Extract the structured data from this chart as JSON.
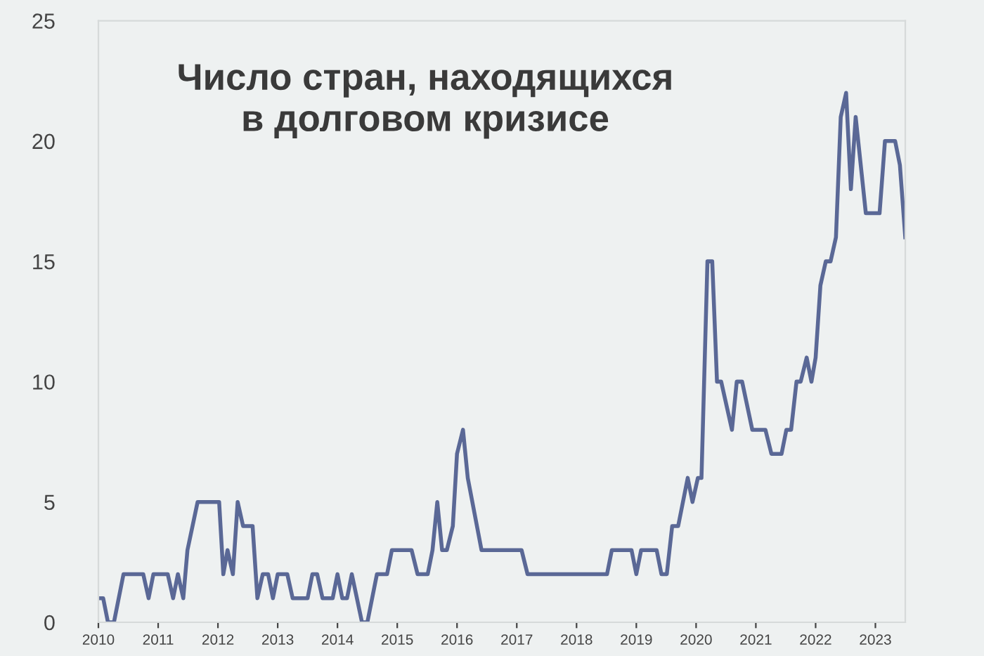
{
  "chart_data": {
    "type": "line",
    "title": "Число стран, находящихся\nв долговом кризисе",
    "series": [
      {
        "color": "#5a6896",
        "x": [
          2010.0,
          2010.08,
          2010.16,
          2010.26,
          2010.42,
          2010.75,
          2010.84,
          2010.92,
          2011.16,
          2011.25,
          2011.33,
          2011.42,
          2011.49,
          2011.66,
          2012.02,
          2012.09,
          2012.16,
          2012.25,
          2012.33,
          2012.42,
          2012.58,
          2012.66,
          2012.75,
          2012.84,
          2012.92,
          2013.0,
          2013.16,
          2013.25,
          2013.5,
          2013.58,
          2013.66,
          2013.75,
          2013.92,
          2014.0,
          2014.08,
          2014.16,
          2014.24,
          2014.41,
          2014.5,
          2014.66,
          2014.83,
          2014.91,
          2015.24,
          2015.34,
          2015.51,
          2015.59,
          2015.67,
          2015.75,
          2015.83,
          2015.93,
          2016.0,
          2016.1,
          2016.18,
          2016.41,
          2017.08,
          2017.18,
          2018.51,
          2018.59,
          2018.92,
          2019.0,
          2019.08,
          2019.34,
          2019.42,
          2019.51,
          2019.6,
          2019.7,
          2019.86,
          2019.94,
          2020.03,
          2020.09,
          2020.19,
          2020.27,
          2020.35,
          2020.42,
          2020.6,
          2020.68,
          2020.77,
          2020.94,
          2021.16,
          2021.26,
          2021.43,
          2021.51,
          2021.59,
          2021.68,
          2021.75,
          2021.85,
          2021.93,
          2022.0,
          2022.08,
          2022.17,
          2022.25,
          2022.34,
          2022.42,
          2022.51,
          2022.59,
          2022.67,
          2022.84,
          2023.07,
          2023.16,
          2023.33,
          2023.41,
          2023.5
        ],
        "values": [
          1,
          1,
          0,
          0,
          2,
          2,
          1,
          2,
          2,
          1,
          2,
          1,
          3,
          5,
          5,
          2,
          3,
          2,
          5,
          4,
          4,
          1,
          2,
          2,
          1,
          2,
          2,
          1,
          1,
          2,
          2,
          1,
          1,
          2,
          1,
          1,
          2,
          0,
          0,
          2,
          2,
          3,
          3,
          2,
          2,
          3,
          5,
          3,
          3,
          4,
          7,
          8,
          6,
          3,
          3,
          2,
          2,
          3,
          3,
          2,
          3,
          3,
          2,
          2,
          4,
          4,
          6,
          5,
          6,
          6,
          15,
          15,
          10,
          10,
          8,
          10,
          10,
          8,
          8,
          7,
          7,
          8,
          8,
          10,
          10,
          11,
          10,
          11,
          14,
          15,
          15,
          16,
          21,
          22,
          18,
          21,
          17,
          17,
          20,
          20,
          19,
          16
        ]
      }
    ],
    "xlim": [
      2010,
      2023.5
    ],
    "xticks": [
      2010,
      2011,
      2012,
      2013,
      2014,
      2015,
      2016,
      2017,
      2018,
      2019,
      2020,
      2021,
      2022,
      2023
    ],
    "ylim": [
      0,
      25
    ],
    "yticks": [
      0,
      5,
      10,
      15,
      20,
      25
    ],
    "grid": false,
    "marker": "none",
    "line_style": "solid"
  }
}
